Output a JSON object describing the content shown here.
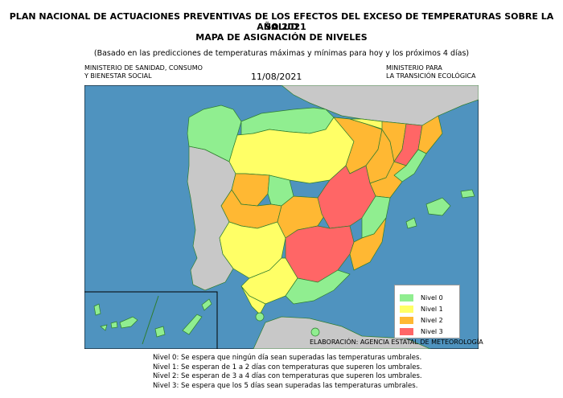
{
  "header": {
    "title_line1": "PLAN NACIONAL DE ACTUACIONES PREVENTIVAS DE LOS EFECTOS DEL EXCESO DE TEMPERATURAS SOBRE LA SALUD",
    "title_line2": "AÑO 2021",
    "title_line3": "MAPA DE ASIGNACIÓN DE NIVELES",
    "subtitle": "(Basado en las predicciones de temperaturas máximas y mínimas para hoy y los próximos 4 días)",
    "ministry_left_1": "MINISTERIO DE SANIDAD, CONSUMO",
    "ministry_left_2": "Y BIENESTAR SOCIAL",
    "date": "11/08/2021",
    "ministry_right_1": "MINISTERIO PARA",
    "ministry_right_2": "LA TRANSICIÓN ECOLÓGICA"
  },
  "colors": {
    "sea": "#4f93bf",
    "land_other": "#c8c8c8",
    "nivel0": "#90ee90",
    "nivel1": "#ffff66",
    "nivel2": "#ffb833",
    "nivel3": "#ff6666",
    "border": "#2e7d2e"
  },
  "legend": [
    {
      "label": "Nivel 0",
      "color_key": "nivel0"
    },
    {
      "label": "Nivel 1",
      "color_key": "nivel1"
    },
    {
      "label": "Nivel 2",
      "color_key": "nivel2"
    },
    {
      "label": "Nivel 3",
      "color_key": "nivel3"
    }
  ],
  "credit": "ELABORACIÓN: AGENCIA ESTATAL DE METEOROLOGÍA",
  "footnotes": [
    "Nivel 0: Se espera que ningún día sean superadas las temperaturas umbrales.",
    "Nivel 1: Se esperan de 1 a 2 días con temperaturas que superen los umbrales.",
    "Nivel 2: Se esperan de 3 a 4 días con temperaturas que superen los umbrales.",
    "Nivel 3: Se espera que los 5 días sean superadas las temperaturas umbrales."
  ]
}
